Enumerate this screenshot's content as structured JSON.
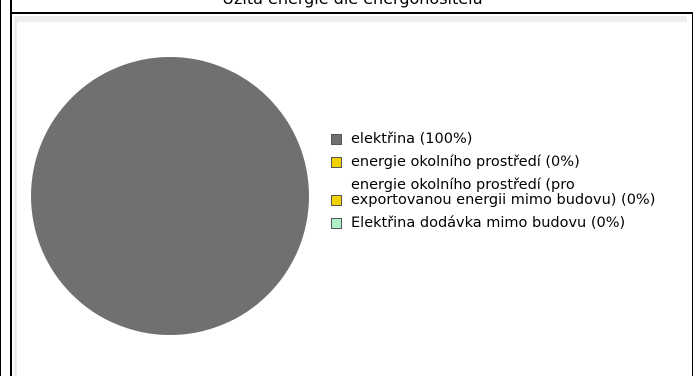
{
  "header": {
    "title": "Užitá energie dle energonositelů"
  },
  "chart_data": {
    "type": "pie",
    "title": "Užitá energie dle energonositelů",
    "slices": [
      {
        "label": "elektřina (100%)",
        "value": 100,
        "color": "#707070"
      },
      {
        "label": "energie okolního prostředí (0%)",
        "value": 0,
        "color": "#f2d100"
      },
      {
        "label": "energie okolního prostředí (pro exportovanou energii mimo budovu) (0%)",
        "value": 0,
        "color": "#f2d100"
      },
      {
        "label": "Elektřina dodávka mimo budovu (0%)",
        "value": 0,
        "color": "#aef0c8"
      }
    ],
    "legend_position": "right"
  }
}
